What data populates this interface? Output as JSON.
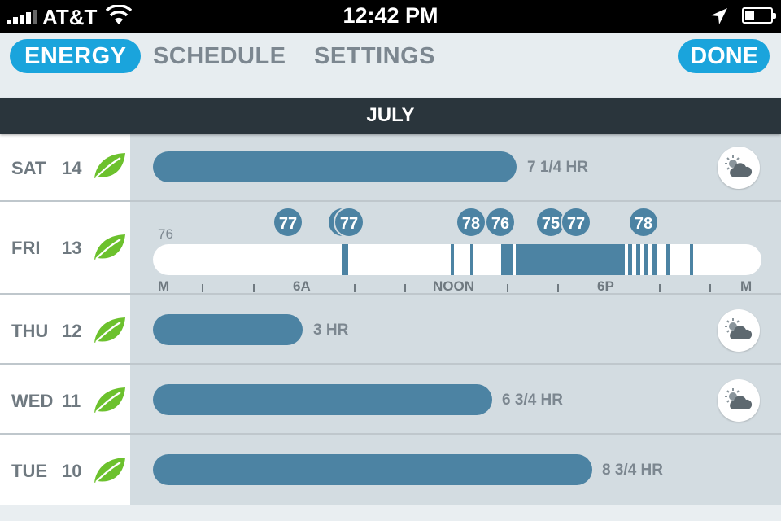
{
  "status_bar": {
    "carrier": "AT&T",
    "time": "12:42 PM"
  },
  "nav": {
    "tabs": [
      {
        "label": "ENERGY",
        "active": true
      },
      {
        "label": "SCHEDULE",
        "active": false
      },
      {
        "label": "SETTINGS",
        "active": false
      }
    ],
    "done_label": "DONE"
  },
  "month": "JULY",
  "days": [
    {
      "day": "SAT",
      "date": "14",
      "duration": "7 1/4 HR",
      "weather": true
    },
    {
      "day": "FRI",
      "date": "13",
      "expanded": true
    },
    {
      "day": "THU",
      "date": "12",
      "duration": "3 HR",
      "weather": true
    },
    {
      "day": "WED",
      "date": "11",
      "duration": "6 3/4 HR",
      "weather": true
    },
    {
      "day": "TUE",
      "date": "10",
      "duration": "8 3/4 HR",
      "weather": false
    }
  ],
  "fri_detail": {
    "start_setpoint": "76",
    "setpoints": [
      "77",
      "77",
      "78",
      "76",
      "75",
      "77",
      "78"
    ],
    "axis_labels": [
      "M",
      "6A",
      "NOON",
      "6P",
      "M"
    ]
  },
  "colors": {
    "accent": "#1aa4dc",
    "bar": "#4c83a3",
    "leaf": "#6cc12d"
  }
}
